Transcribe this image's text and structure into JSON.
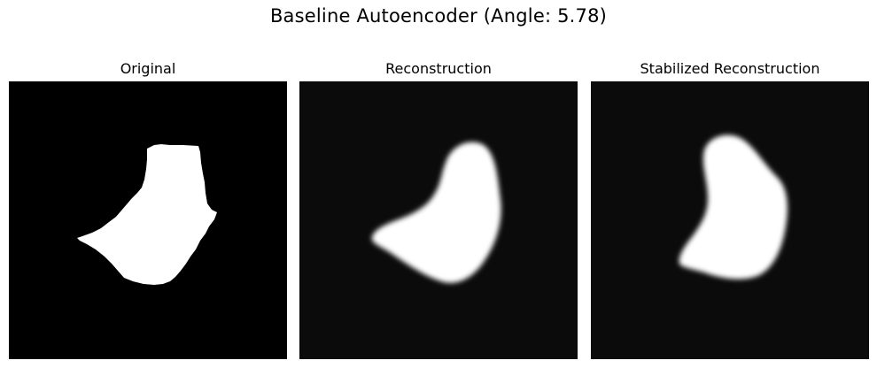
{
  "figure": {
    "title": "Baseline Autoencoder (Angle: 5.78)"
  },
  "panels": [
    {
      "title": "Original",
      "style": "sharp-binary-mask"
    },
    {
      "title": "Reconstruction",
      "style": "blurred-reconstruction"
    },
    {
      "title": "Stabilized Reconstruction",
      "style": "blurred-reconstruction"
    }
  ],
  "colors": {
    "background": "#ffffff",
    "image_background_original": "#000000",
    "image_background_reconstruction": "#0b0b0b",
    "shape_fill": "#ffffff"
  }
}
